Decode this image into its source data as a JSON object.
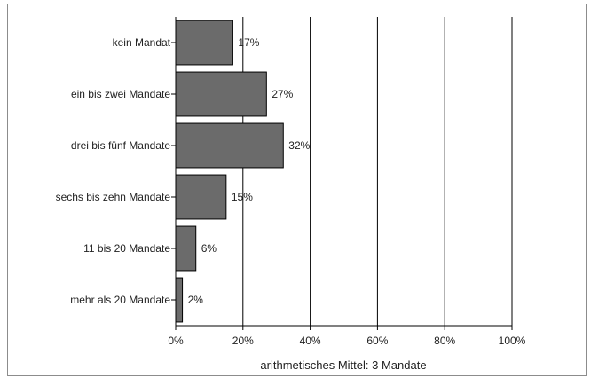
{
  "chart_data": {
    "type": "bar",
    "orientation": "horizontal",
    "categories": [
      "kein Mandat",
      "ein bis zwei Mandate",
      "drei bis fünf Mandate",
      "sechs bis zehn Mandate",
      "11 bis 20 Mandate",
      "mehr als 20 Mandate"
    ],
    "values": [
      17,
      27,
      32,
      15,
      6,
      2
    ],
    "value_labels": [
      "17%",
      "27%",
      "32%",
      "15%",
      "6%",
      "2%"
    ],
    "xlabel": "arithmetisches Mittel: 3 Mandate",
    "xlim": [
      0,
      100
    ],
    "xticks": [
      0,
      20,
      40,
      60,
      80,
      100
    ],
    "xtick_labels": [
      "0%",
      "20%",
      "40%",
      "60%",
      "80%",
      "100%"
    ],
    "grid": "vertical",
    "legend": "none",
    "colors": {
      "bar_fill": "#6b6b6b",
      "bar_stroke": "#000000",
      "grid": "#000000"
    }
  }
}
